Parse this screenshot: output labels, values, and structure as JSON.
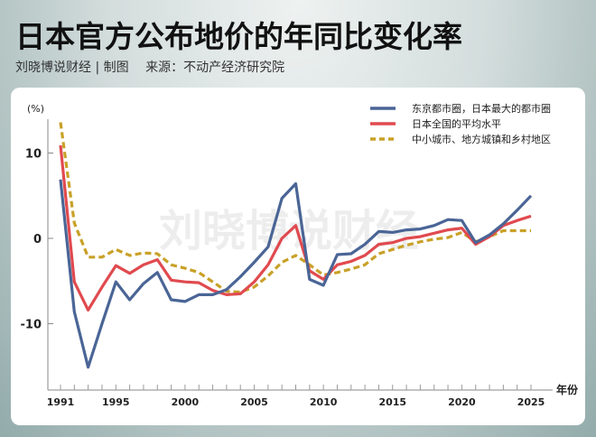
{
  "header": {
    "title": "日本官方公布地价的年同比变化率",
    "credit": "刘晓博说财经 | 制图",
    "source": "来源：不动产经济研究院",
    "watermark": "刘晓博说财经"
  },
  "chart_data": {
    "type": "line",
    "title": "日本官方公布地价的年同比变化率",
    "ylabel": "(%)",
    "xlabel": "年份",
    "x": [
      1991,
      1992,
      1993,
      1994,
      1995,
      1996,
      1997,
      1998,
      1999,
      2000,
      2001,
      2002,
      2003,
      2004,
      2005,
      2006,
      2007,
      2008,
      2009,
      2010,
      2011,
      2012,
      2013,
      2014,
      2015,
      2016,
      2017,
      2018,
      2019,
      2020,
      2021,
      2022,
      2023,
      2024,
      2025
    ],
    "xticks": [
      "1991",
      "1995",
      "2000",
      "2005",
      "2010",
      "2015",
      "2020",
      "2025"
    ],
    "yticks": [
      "10",
      "0",
      "-10"
    ],
    "ylim": [
      -18,
      14
    ],
    "xlim": [
      1991,
      2025
    ],
    "grid": false,
    "legend_position": "top-right",
    "series": [
      {
        "name": "东京都市圈，日本最大的都市圈",
        "color": "#4a6596",
        "dash": false,
        "values": [
          6.9,
          -8.6,
          -15.1,
          -10.0,
          -5.1,
          -7.2,
          -5.3,
          -4.0,
          -7.2,
          -7.4,
          -6.6,
          -6.6,
          -6.0,
          -4.5,
          -2.8,
          -1.0,
          4.7,
          6.4,
          -4.8,
          -5.5,
          -1.9,
          -1.8,
          -0.7,
          0.8,
          0.7,
          1.0,
          1.1,
          1.5,
          2.2,
          2.1,
          -0.5,
          0.4,
          1.7,
          3.3,
          5.0
        ]
      },
      {
        "name": "日本全国的平均水平",
        "color": "#e04a4f",
        "dash": false,
        "values": [
          10.9,
          -5.1,
          -8.4,
          -5.7,
          -3.2,
          -4.1,
          -3.1,
          -2.5,
          -4.9,
          -5.1,
          -5.2,
          -6.1,
          -6.6,
          -6.5,
          -5.1,
          -3.1,
          0.0,
          1.5,
          -3.8,
          -4.8,
          -3.1,
          -2.7,
          -2.0,
          -0.7,
          -0.5,
          0.0,
          0.2,
          0.6,
          1.0,
          1.2,
          -0.7,
          0.2,
          1.5,
          2.1,
          2.6
        ]
      },
      {
        "name": "中小城市、地方城镇和乡村地区",
        "color": "#c9a128",
        "dash": true,
        "values": [
          13.6,
          1.8,
          -2.2,
          -2.2,
          -1.3,
          -2.0,
          -1.7,
          -1.8,
          -3.1,
          -3.5,
          -4.0,
          -5.1,
          -6.2,
          -6.3,
          -5.7,
          -4.4,
          -2.8,
          -2.0,
          -3.1,
          -4.3,
          -4.0,
          -3.6,
          -3.1,
          -1.8,
          -1.3,
          -0.8,
          -0.4,
          -0.1,
          0.1,
          0.7,
          -0.4,
          0.2,
          0.9,
          0.9,
          0.9
        ]
      }
    ]
  }
}
